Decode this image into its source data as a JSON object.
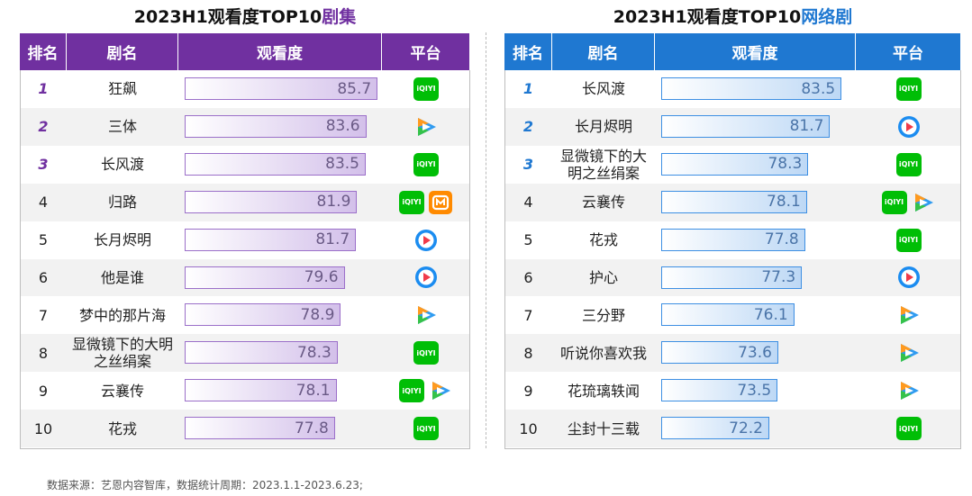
{
  "tables": [
    {
      "title": "2023H1观看度TOP10",
      "title_highlight": "剧集",
      "headers": [
        "排名",
        "剧名",
        "观看度",
        "平台"
      ],
      "rows": [
        {
          "rank": "1",
          "name": "狂飙",
          "score": 85.7
        },
        {
          "rank": "2",
          "name": "三体",
          "score": 83.6
        },
        {
          "rank": "3",
          "name": "长风渡",
          "score": 83.5
        },
        {
          "rank": "4",
          "name": "归路",
          "score": 81.9
        },
        {
          "rank": "5",
          "name": "长月烬明",
          "score": 81.7
        },
        {
          "rank": "6",
          "name": "他是谁",
          "score": 79.6
        },
        {
          "rank": "7",
          "name": "梦中的那片海",
          "score": 78.9
        },
        {
          "rank": "8",
          "name": "显微镜下的大明之丝绢案",
          "score": 78.3
        },
        {
          "rank": "9",
          "name": "云襄传",
          "score": 78.1
        },
        {
          "rank": "10",
          "name": "花戎",
          "score": 77.8
        }
      ]
    },
    {
      "title": "2023H1观看度TOP10",
      "title_highlight": "网络剧",
      "headers": [
        "排名",
        "剧名",
        "观看度",
        "平台"
      ],
      "rows": [
        {
          "rank": "1",
          "name": "长风渡",
          "score": 83.5
        },
        {
          "rank": "2",
          "name": "长月烬明",
          "score": 81.7
        },
        {
          "rank": "3",
          "name": "显微镜下的大明之丝绢案",
          "score": 78.3
        },
        {
          "rank": "4",
          "name": "云襄传",
          "score": 78.1
        },
        {
          "rank": "5",
          "name": "花戎",
          "score": 77.8
        },
        {
          "rank": "6",
          "name": "护心",
          "score": 77.3
        },
        {
          "rank": "7",
          "name": "三分野",
          "score": 76.1
        },
        {
          "rank": "8",
          "name": "听说你喜欢我",
          "score": 73.6
        },
        {
          "rank": "9",
          "name": "花琉璃轶闻",
          "score": 73.5
        },
        {
          "rank": "10",
          "name": "尘封十三载",
          "score": 72.2
        }
      ]
    }
  ],
  "platform_logo_text": "iQIYI",
  "source": "数据来源：艺恩内容智库，数据统计周期：2023.1.1-2023.6.23;"
}
